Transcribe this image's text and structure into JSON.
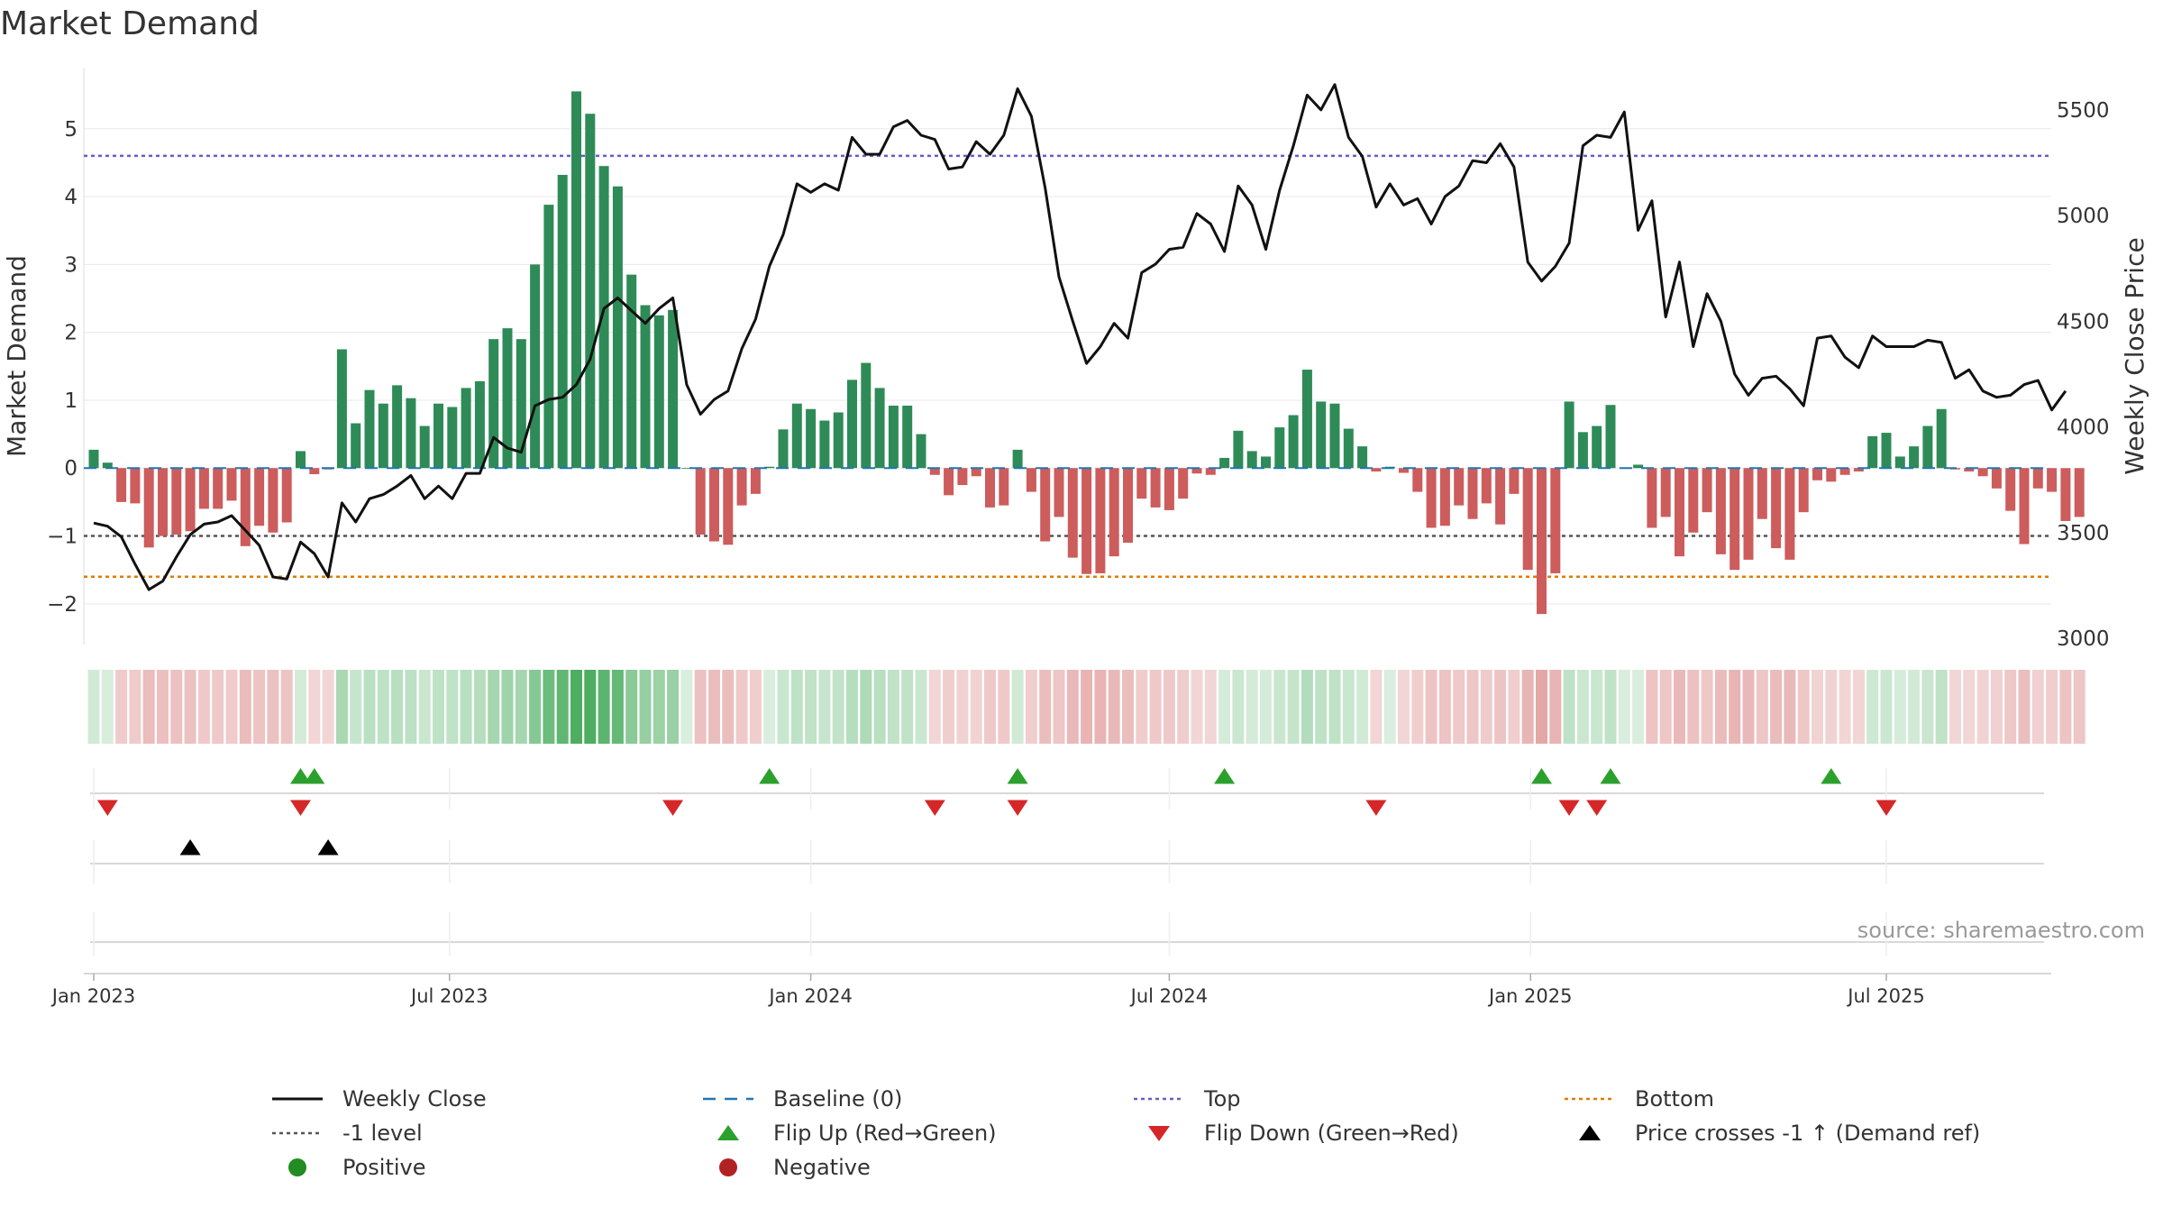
{
  "chart_data": {
    "type": "bar",
    "title": "Market Demand",
    "ylabel_left": "Market Demand",
    "ylabel_right": "Weekly Close Price",
    "source": "source: sharemaestro.com",
    "ylim_left": [
      -2.6,
      5.9
    ],
    "ylim_right": [
      2970,
      5700
    ],
    "yticks_left": [
      -2,
      -1,
      0,
      1,
      2,
      3,
      4,
      5
    ],
    "ytick_labels_left": [
      "−2",
      "−1",
      "0",
      "1",
      "2",
      "3",
      "4",
      "5"
    ],
    "yticks_right": [
      3000,
      3500,
      4000,
      4500,
      5000,
      5500
    ],
    "ytick_labels_right": [
      "3000",
      "3500",
      "4000",
      "4500",
      "5000",
      "5500"
    ],
    "x_ticks": [
      {
        "label": "Jan 2023",
        "week": 1.0
      },
      {
        "label": "Jul 2023",
        "week": 26.8
      },
      {
        "label": "Jan 2024",
        "week": 53.0
      },
      {
        "label": "Jul 2024",
        "week": 79.0
      },
      {
        "label": "Jan 2025",
        "week": 105.2
      },
      {
        "label": "Jul 2025",
        "week": 131.0
      }
    ],
    "reference_lines": {
      "top": 4.6,
      "minus_one": -1,
      "bottom": -1.6,
      "baseline": 0
    },
    "colors": {
      "positive_bar": "#2e8b57",
      "negative_bar": "#cd5c5c",
      "close_line": "#111111",
      "baseline": "#1f77b4",
      "top_line": "#6a5acd",
      "bottom_line": "#e07b00",
      "minus_one_line": "#555555",
      "flip_up": "#2ca02c",
      "flip_down": "#d62728",
      "cross": "#000000",
      "positive_dot": "#228b22",
      "negative_dot": "#b22222"
    },
    "demand": [
      0.27,
      0.08,
      -0.5,
      -0.52,
      -1.17,
      -1.0,
      -0.98,
      -0.93,
      -0.6,
      -0.6,
      -0.48,
      -1.15,
      -0.85,
      -0.95,
      -0.8,
      0.25,
      -0.09,
      -0.02,
      1.75,
      0.66,
      1.15,
      0.95,
      1.22,
      1.03,
      0.62,
      0.95,
      0.9,
      1.18,
      1.28,
      1.9,
      2.06,
      1.9,
      3.0,
      3.88,
      4.32,
      5.55,
      5.22,
      4.45,
      4.15,
      2.85,
      2.4,
      2.25,
      2.33,
      0.0,
      -0.98,
      -1.08,
      -1.13,
      -0.55,
      -0.38,
      0.02,
      0.57,
      0.95,
      0.87,
      0.7,
      0.82,
      1.3,
      1.55,
      1.18,
      0.92,
      0.92,
      0.5,
      -0.1,
      -0.4,
      -0.25,
      -0.12,
      -0.58,
      -0.55,
      0.27,
      -0.35,
      -1.08,
      -0.72,
      -1.32,
      -1.56,
      -1.55,
      -1.3,
      -1.1,
      -0.45,
      -0.58,
      -0.62,
      -0.45,
      -0.08,
      -0.1,
      0.15,
      0.55,
      0.25,
      0.17,
      0.6,
      0.78,
      1.45,
      0.98,
      0.95,
      0.58,
      0.32,
      -0.05,
      0.02,
      -0.07,
      -0.35,
      -0.88,
      -0.85,
      -0.55,
      -0.75,
      -0.52,
      -0.83,
      -0.38,
      -1.5,
      -2.15,
      -1.55,
      0.98,
      0.53,
      0.62,
      0.93,
      0.0,
      0.05,
      -0.88,
      -0.72,
      -1.3,
      -0.95,
      -0.65,
      -1.27,
      -1.5,
      -1.35,
      -0.75,
      -1.18,
      -1.35,
      -0.65,
      -0.18,
      -0.2,
      -0.1,
      -0.05,
      0.47,
      0.52,
      0.17,
      0.32,
      0.62,
      0.87,
      -0.02,
      -0.05,
      -0.12,
      -0.3,
      -0.63,
      -1.12,
      -0.3,
      -0.35,
      -0.78,
      -0.72
    ],
    "close": [
      3545,
      3530,
      3480,
      3350,
      3230,
      3270,
      3385,
      3490,
      3540,
      3550,
      3580,
      3510,
      3440,
      3290,
      3280,
      3455,
      3400,
      3290,
      3640,
      3550,
      3660,
      3680,
      3720,
      3770,
      3660,
      3720,
      3660,
      3780,
      3780,
      3950,
      3900,
      3880,
      4100,
      4130,
      4140,
      4200,
      4320,
      4560,
      4610,
      4550,
      4490,
      4560,
      4610,
      4200,
      4060,
      4130,
      4170,
      4370,
      4510,
      4760,
      4910,
      5150,
      5110,
      5150,
      5120,
      5370,
      5290,
      5290,
      5420,
      5450,
      5380,
      5360,
      5220,
      5230,
      5350,
      5290,
      5380,
      5600,
      5470,
      5130,
      4710,
      4500,
      4300,
      4380,
      4490,
      4420,
      4730,
      4770,
      4840,
      4850,
      5010,
      4960,
      4830,
      5140,
      5050,
      4840,
      5120,
      5330,
      5570,
      5500,
      5620,
      5370,
      5280,
      5040,
      5150,
      5050,
      5080,
      4960,
      5090,
      5140,
      5260,
      5250,
      5340,
      5230,
      4780,
      4690,
      4760,
      4870,
      5330,
      5380,
      5370,
      5490,
      4930,
      5070,
      4520,
      4780,
      4380,
      4630,
      4500,
      4250,
      4150,
      4230,
      4240,
      4180,
      4100,
      4420,
      4430,
      4330,
      4280,
      4430,
      4380,
      4380,
      4380,
      4410,
      4400,
      4230,
      4270,
      4170,
      4140,
      4150,
      4200,
      4220,
      4080,
      4170
    ],
    "flip_up_weeks": [
      16,
      17,
      50,
      68,
      83,
      106,
      111,
      127
    ],
    "flip_down_weeks": [
      2,
      16,
      43,
      62,
      68,
      94,
      108,
      110,
      131
    ],
    "cross_weeks": [
      8,
      18
    ],
    "legend": [
      {
        "key": "close",
        "label": "Weekly Close"
      },
      {
        "key": "baseline",
        "label": "Baseline (0)"
      },
      {
        "key": "top",
        "label": "Top"
      },
      {
        "key": "bottom",
        "label": "Bottom"
      },
      {
        "key": "minus_one",
        "label": "-1 level"
      },
      {
        "key": "flip_up",
        "label": "Flip Up (Red→Green)"
      },
      {
        "key": "flip_down",
        "label": "Flip Down (Green→Red)"
      },
      {
        "key": "cross",
        "label": "Price crosses -1 ↑ (Demand ref)"
      },
      {
        "key": "positive",
        "label": "Positive"
      },
      {
        "key": "negative",
        "label": "Negative"
      }
    ]
  }
}
